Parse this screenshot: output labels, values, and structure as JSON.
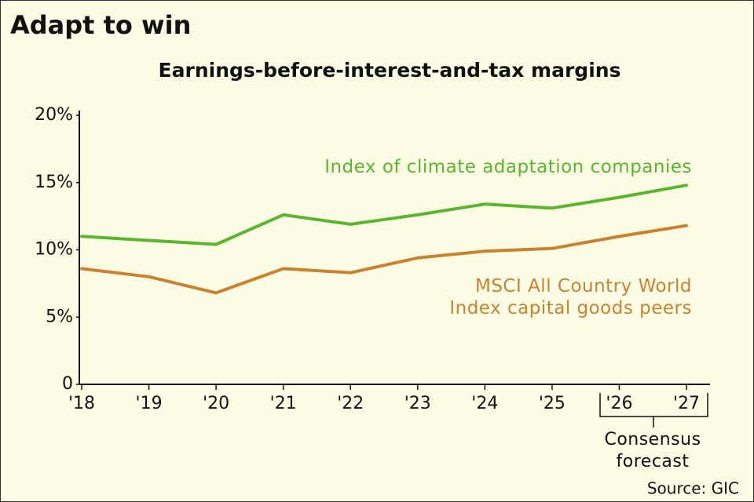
{
  "chart_data": {
    "type": "line",
    "title": "Adapt to win",
    "subtitle": "Earnings-before-interest-and-tax margins",
    "categories": [
      "'18",
      "'19",
      "'20",
      "'21",
      "'22",
      "'23",
      "'24",
      "'25",
      "'26",
      "'27"
    ],
    "series": [
      {
        "name": "Index of climate adaptation companies",
        "color": "#5ab52f",
        "values": [
          11.0,
          10.7,
          10.4,
          12.6,
          11.9,
          12.6,
          13.4,
          13.1,
          13.9,
          14.8
        ]
      },
      {
        "name": "MSCI All Country World Index capital goods peers",
        "color": "#c9822f",
        "values": [
          8.6,
          8.0,
          6.8,
          8.6,
          8.3,
          9.4,
          9.9,
          10.1,
          11.0,
          11.8
        ]
      }
    ],
    "ylim": [
      0,
      20
    ],
    "yticks": [
      {
        "value": 0,
        "label": "0"
      },
      {
        "value": 5,
        "label": "5%"
      },
      {
        "value": 10,
        "label": "10%"
      },
      {
        "value": 15,
        "label": "15%"
      },
      {
        "value": 20,
        "label": "20%"
      }
    ],
    "grid": false,
    "annotation": "Consensus forecast",
    "source": "Source: GIC"
  }
}
